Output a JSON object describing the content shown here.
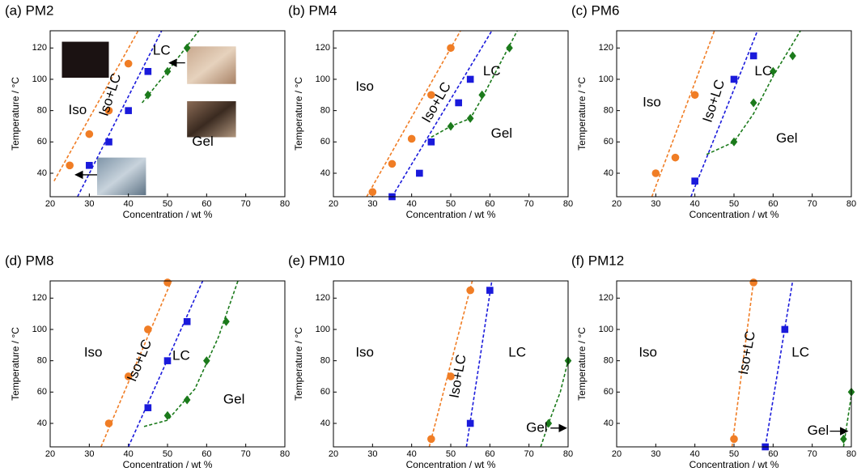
{
  "chart_data": [
    {
      "type": "scatter",
      "title": "(a) PM2",
      "xlabel": "Concentration / wt %",
      "ylabel": "Temperature / °C",
      "xlim": [
        20,
        80
      ],
      "ylim": [
        25,
        131
      ],
      "xticks": [
        20,
        30,
        40,
        50,
        60,
        70,
        80
      ],
      "yticks": [
        40,
        60,
        80,
        100,
        120
      ],
      "labels": [
        "Iso",
        "Iso+LC",
        "LC",
        "Gel"
      ],
      "series": [
        {
          "color": "#f07d25",
          "marker": "circle",
          "x": [
            25,
            30,
            35,
            40
          ],
          "values": [
            45,
            65,
            80,
            110
          ],
          "fit_x": [
            21,
            42.5
          ],
          "fit_y": [
            35,
            131
          ]
        },
        {
          "color": "#1a1adb",
          "marker": "square",
          "x": [
            30,
            35,
            40,
            45
          ],
          "values": [
            45,
            60,
            80,
            105
          ],
          "fit_x": [
            27,
            48.5
          ],
          "fit_y": [
            25,
            131
          ]
        },
        {
          "color": "#1b7a1b",
          "marker": "diamond",
          "x": [
            45,
            50,
            55
          ],
          "values": [
            90,
            105,
            120
          ],
          "fit_x": [
            43.5,
            50,
            58
          ],
          "fit_y": [
            85,
            105,
            131
          ]
        }
      ]
    },
    {
      "type": "scatter",
      "title": "(b) PM4",
      "xlabel": "Concentration / wt %",
      "ylabel": "Temperature / °C",
      "xlim": [
        20,
        80
      ],
      "ylim": [
        25,
        131
      ],
      "xticks": [
        20,
        30,
        40,
        50,
        60,
        70,
        80
      ],
      "yticks": [
        40,
        60,
        80,
        100,
        120
      ],
      "labels": [
        "Iso",
        "Iso+LC",
        "LC",
        "Gel"
      ],
      "series": [
        {
          "color": "#f07d25",
          "marker": "circle",
          "x": [
            30,
            35,
            40,
            45,
            50
          ],
          "values": [
            28,
            46,
            62,
            90,
            120
          ],
          "fit_x": [
            28.5,
            52.5
          ],
          "fit_y": [
            25,
            131
          ]
        },
        {
          "color": "#1a1adb",
          "marker": "square",
          "x": [
            35,
            42,
            45,
            52,
            55
          ],
          "values": [
            25,
            40,
            60,
            85,
            100
          ],
          "fit_x": [
            35,
            60.5
          ],
          "fit_y": [
            25,
            131
          ]
        },
        {
          "color": "#1b7a1b",
          "marker": "diamond",
          "x": [
            50,
            55,
            58,
            65
          ],
          "values": [
            70,
            75,
            90,
            120
          ],
          "fit_x": [
            45,
            50,
            55,
            58,
            67
          ],
          "fit_y": [
            63,
            70,
            75,
            88,
            131
          ]
        }
      ]
    },
    {
      "type": "scatter",
      "title": "(c) PM6",
      "xlabel": "Concentration / wt %",
      "ylabel": "Temperature / °C",
      "xlim": [
        20,
        80
      ],
      "ylim": [
        25,
        131
      ],
      "xticks": [
        20,
        30,
        40,
        50,
        60,
        70,
        80
      ],
      "yticks": [
        40,
        60,
        80,
        100,
        120
      ],
      "labels": [
        "Iso",
        "Iso+LC",
        "LC",
        "Gel"
      ],
      "series": [
        {
          "color": "#f07d25",
          "marker": "circle",
          "x": [
            30,
            35,
            40
          ],
          "values": [
            40,
            50,
            90
          ],
          "fit_x": [
            29,
            45
          ],
          "fit_y": [
            25,
            131
          ]
        },
        {
          "color": "#1a1adb",
          "marker": "square",
          "x": [
            40,
            50,
            55
          ],
          "values": [
            35,
            100,
            115
          ],
          "fit_x": [
            39,
            56
          ],
          "fit_y": [
            25,
            131
          ]
        },
        {
          "color": "#1b7a1b",
          "marker": "diamond",
          "x": [
            50,
            55,
            60,
            65
          ],
          "values": [
            60,
            85,
            105,
            115
          ],
          "fit_x": [
            43,
            50,
            55,
            60,
            67
          ],
          "fit_y": [
            52,
            60,
            78,
            102,
            131
          ]
        }
      ]
    },
    {
      "type": "scatter",
      "title": "(d) PM8",
      "xlabel": "Concentration / wt %",
      "ylabel": "Temperature / °C",
      "xlim": [
        20,
        80
      ],
      "ylim": [
        25,
        131
      ],
      "xticks": [
        20,
        30,
        40,
        50,
        60,
        70,
        80
      ],
      "yticks": [
        40,
        60,
        80,
        100,
        120
      ],
      "labels": [
        "Iso",
        "Iso+LC",
        "LC",
        "Gel"
      ],
      "series": [
        {
          "color": "#f07d25",
          "marker": "circle",
          "x": [
            35,
            40,
            45,
            50
          ],
          "values": [
            40,
            70,
            100,
            130
          ],
          "fit_x": [
            33,
            51
          ],
          "fit_y": [
            25,
            131
          ]
        },
        {
          "color": "#1a1adb",
          "marker": "square",
          "x": [
            45,
            50,
            55
          ],
          "values": [
            50,
            80,
            105
          ],
          "fit_x": [
            40,
            59
          ],
          "fit_y": [
            25,
            131
          ]
        },
        {
          "color": "#1b7a1b",
          "marker": "diamond",
          "x": [
            50,
            55,
            60,
            65
          ],
          "values": [
            45,
            55,
            80,
            105
          ],
          "fit_x": [
            44,
            50,
            57,
            63,
            68
          ],
          "fit_y": [
            38,
            42,
            62,
            95,
            131
          ]
        }
      ]
    },
    {
      "type": "scatter",
      "title": "(e) PM10",
      "xlabel": "Concentration / wt %",
      "ylabel": "Temperature / °C",
      "xlim": [
        20,
        80
      ],
      "ylim": [
        25,
        131
      ],
      "xticks": [
        20,
        30,
        40,
        50,
        60,
        70,
        80
      ],
      "yticks": [
        40,
        60,
        80,
        100,
        120
      ],
      "labels": [
        "Iso",
        "Iso+LC",
        "LC",
        "Gel"
      ],
      "series": [
        {
          "color": "#f07d25",
          "marker": "circle",
          "x": [
            45,
            50,
            55
          ],
          "values": [
            30,
            70,
            125
          ],
          "fit_x": [
            44.5,
            55.5
          ],
          "fit_y": [
            25,
            131
          ]
        },
        {
          "color": "#1a1adb",
          "marker": "square",
          "x": [
            55,
            60
          ],
          "values": [
            40,
            125
          ],
          "fit_x": [
            54,
            60.5
          ],
          "fit_y": [
            25,
            131
          ]
        },
        {
          "color": "#1b7a1b",
          "marker": "diamond",
          "x": [
            75,
            80
          ],
          "values": [
            40,
            80
          ],
          "fit_x": [
            73,
            75,
            78,
            80
          ],
          "fit_y": [
            25,
            40,
            60,
            80
          ]
        }
      ]
    },
    {
      "type": "scatter",
      "title": "(f) PM12",
      "xlabel": "Concentration / wt %",
      "ylabel": "Temperature / °C",
      "xlim": [
        20,
        80
      ],
      "ylim": [
        25,
        131
      ],
      "xticks": [
        20,
        30,
        40,
        50,
        60,
        70,
        80
      ],
      "yticks": [
        40,
        60,
        80,
        100,
        120
      ],
      "labels": [
        "Iso",
        "Iso+LC",
        "LC",
        "Gel"
      ],
      "series": [
        {
          "color": "#f07d25",
          "marker": "circle",
          "x": [
            50,
            55
          ],
          "values": [
            30,
            130
          ],
          "fit_x": [
            49.5,
            55
          ],
          "fit_y": [
            25,
            131
          ]
        },
        {
          "color": "#1a1adb",
          "marker": "square",
          "x": [
            58,
            63
          ],
          "values": [
            25,
            100
          ],
          "fit_x": [
            58,
            65
          ],
          "fit_y": [
            25,
            131
          ]
        },
        {
          "color": "#1b7a1b",
          "marker": "diamond",
          "x": [
            78,
            80
          ],
          "values": [
            30,
            60
          ],
          "fit_x": [
            78,
            80
          ],
          "fit_y": [
            25,
            58
          ]
        }
      ]
    }
  ]
}
